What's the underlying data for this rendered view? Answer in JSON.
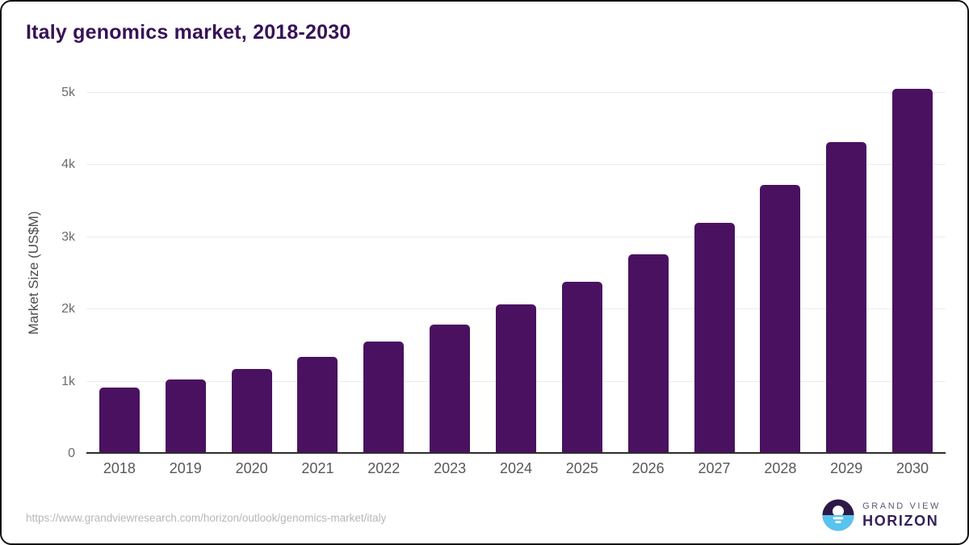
{
  "title": "Italy genomics market, 2018-2030",
  "chart_data": {
    "type": "bar",
    "title": "Italy genomics market, 2018-2030",
    "categories": [
      "2018",
      "2019",
      "2020",
      "2021",
      "2022",
      "2023",
      "2024",
      "2025",
      "2026",
      "2027",
      "2028",
      "2029",
      "2030"
    ],
    "values": [
      900,
      1010,
      1150,
      1320,
      1530,
      1770,
      2050,
      2360,
      2740,
      3180,
      3700,
      4300,
      5030
    ],
    "xlabel": "",
    "ylabel": "Market Size (US$M)",
    "ylim": [
      0,
      5000
    ],
    "yticks": [
      {
        "value": 0,
        "label": "0"
      },
      {
        "value": 1000,
        "label": "1k"
      },
      {
        "value": 2000,
        "label": "2k"
      },
      {
        "value": 3000,
        "label": "3k"
      },
      {
        "value": 4000,
        "label": "4k"
      },
      {
        "value": 5000,
        "label": "5k"
      }
    ],
    "grid": true,
    "legend": "none",
    "bar_color": "#4a1160"
  },
  "colors": {
    "title": "#371256",
    "bar": "#4a1160",
    "gridline": "#ebebeb",
    "axis_line": "#2d2d2d",
    "brand_purple": "#2d1947",
    "brand_blue": "#58c3ef"
  },
  "footer": {
    "source_url": "https://www.grandviewresearch.com/horizon/outlook/genomics-market/italy",
    "logo": {
      "line1": "GRAND VIEW",
      "line2": "HORIZON"
    }
  }
}
